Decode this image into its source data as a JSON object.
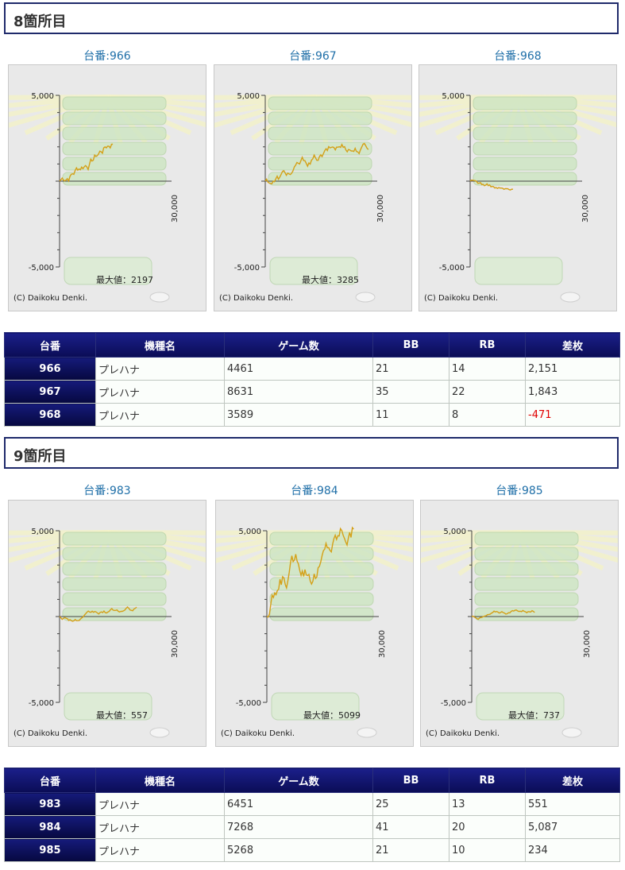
{
  "sections": [
    {
      "title": "8箇所目",
      "graphs": [
        {
          "label": "台番:966",
          "max_label": "最大値：2197",
          "y_top": "5,000",
          "y_bottom": "-5,000",
          "x_label": "30,000",
          "copyright": "(C) Daikoku Denki."
        },
        {
          "label": "台番:967",
          "max_label": "最大値：3285",
          "y_top": "5,000",
          "y_bottom": "-5,000",
          "x_label": "30,000",
          "copyright": "(C) Daikoku Denki."
        },
        {
          "label": "台番:968",
          "max_label": "",
          "y_top": "5,000",
          "y_bottom": "-5,000",
          "x_label": "30,000",
          "copyright": "(C) Daikoku Denki."
        }
      ],
      "table": {
        "headers": [
          "台番",
          "機種名",
          "ゲーム数",
          "BB",
          "RB",
          "差枚"
        ],
        "rows": [
          [
            "966",
            "プレハナ",
            "4461",
            "21",
            "14",
            "2,151"
          ],
          [
            "967",
            "プレハナ",
            "8631",
            "35",
            "22",
            "1,843"
          ],
          [
            "968",
            "プレハナ",
            "3589",
            "11",
            "8",
            "-471"
          ]
        ]
      }
    },
    {
      "title": "9箇所目",
      "graphs": [
        {
          "label": "台番:983",
          "max_label": "最大値：557",
          "y_top": "5,000",
          "y_bottom": "-5,000",
          "x_label": "30,000",
          "copyright": "(C) Daikoku Denki."
        },
        {
          "label": "台番:984",
          "max_label": "最大値：5099",
          "y_top": "5,000",
          "y_bottom": "-5,000",
          "x_label": "30,000",
          "copyright": "(C) Daikoku Denki."
        },
        {
          "label": "台番:985",
          "max_label": "最大値：737",
          "y_top": "5,000",
          "y_bottom": "-5,000",
          "x_label": "30,000",
          "copyright": "(C) Daikoku Denki."
        }
      ],
      "table": {
        "headers": [
          "台番",
          "機種名",
          "ゲーム数",
          "BB",
          "RB",
          "差枚"
        ],
        "rows": [
          [
            "983",
            "プレハナ",
            "6451",
            "25",
            "13",
            "551"
          ],
          [
            "984",
            "プレハナ",
            "7268",
            "41",
            "20",
            "5,087"
          ],
          [
            "985",
            "プレハナ",
            "5268",
            "21",
            "10",
            "234"
          ]
        ]
      }
    }
  ],
  "chart_data": [
    {
      "type": "line",
      "ylim": [
        -5000,
        5000
      ],
      "xlim": [
        0,
        30000
      ],
      "series": [
        {
          "x": [
            0,
            4461
          ],
          "y": [
            0,
            2151
          ],
          "max": 2197
        }
      ]
    },
    {
      "type": "line",
      "ylim": [
        -5000,
        5000
      ],
      "xlim": [
        0,
        30000
      ],
      "series": [
        {
          "x": [
            0,
            8631
          ],
          "y": [
            0,
            1843
          ],
          "max": 3285
        }
      ]
    },
    {
      "type": "line",
      "ylim": [
        -5000,
        5000
      ],
      "xlim": [
        0,
        30000
      ],
      "series": [
        {
          "x": [
            0,
            3589
          ],
          "y": [
            0,
            -471
          ]
        }
      ]
    },
    {
      "type": "line",
      "ylim": [
        -5000,
        5000
      ],
      "xlim": [
        0,
        30000
      ],
      "series": [
        {
          "x": [
            0,
            6451
          ],
          "y": [
            0,
            551
          ],
          "max": 557
        }
      ]
    },
    {
      "type": "line",
      "ylim": [
        -5000,
        5000
      ],
      "xlim": [
        0,
        30000
      ],
      "series": [
        {
          "x": [
            0,
            7268
          ],
          "y": [
            0,
            5087
          ],
          "max": 5099
        }
      ]
    },
    {
      "type": "line",
      "ylim": [
        -5000,
        5000
      ],
      "xlim": [
        0,
        30000
      ],
      "series": [
        {
          "x": [
            0,
            5268
          ],
          "y": [
            0,
            234
          ],
          "max": 737
        }
      ]
    }
  ],
  "colors": {
    "header_border": "#1f2a6b",
    "table_header": "#0a0c55",
    "line": "#d4a017",
    "negative": "#e00000"
  }
}
